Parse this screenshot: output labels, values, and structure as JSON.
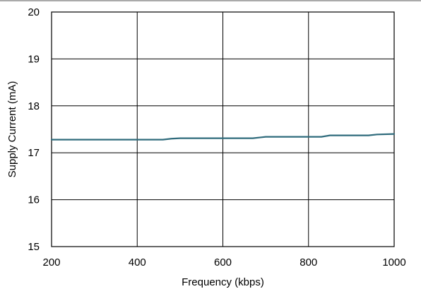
{
  "chart_data": {
    "type": "line",
    "title": "",
    "xlabel": "Frequency (kbps)",
    "ylabel": "Supply Current (mA)",
    "xlim": [
      200,
      1000
    ],
    "ylim": [
      15,
      20
    ],
    "xticks": [
      200,
      400,
      600,
      800,
      1000
    ],
    "yticks": [
      15,
      16,
      17,
      18,
      19,
      20
    ],
    "grid": true,
    "legend": "none",
    "series": [
      {
        "color": "#2f6b7c",
        "x": [
          200,
          250,
          300,
          350,
          400,
          450,
          460,
          480,
          500,
          550,
          600,
          650,
          670,
          690,
          700,
          750,
          800,
          830,
          850,
          900,
          940,
          960,
          1000
        ],
        "y": [
          17.28,
          17.28,
          17.28,
          17.28,
          17.28,
          17.28,
          17.28,
          17.3,
          17.31,
          17.31,
          17.31,
          17.31,
          17.31,
          17.33,
          17.34,
          17.34,
          17.34,
          17.34,
          17.37,
          17.37,
          17.37,
          17.39,
          17.4
        ]
      }
    ]
  },
  "colors": {
    "line": "#2f6b7c",
    "grid": "#000000",
    "frame": "#000000"
  }
}
